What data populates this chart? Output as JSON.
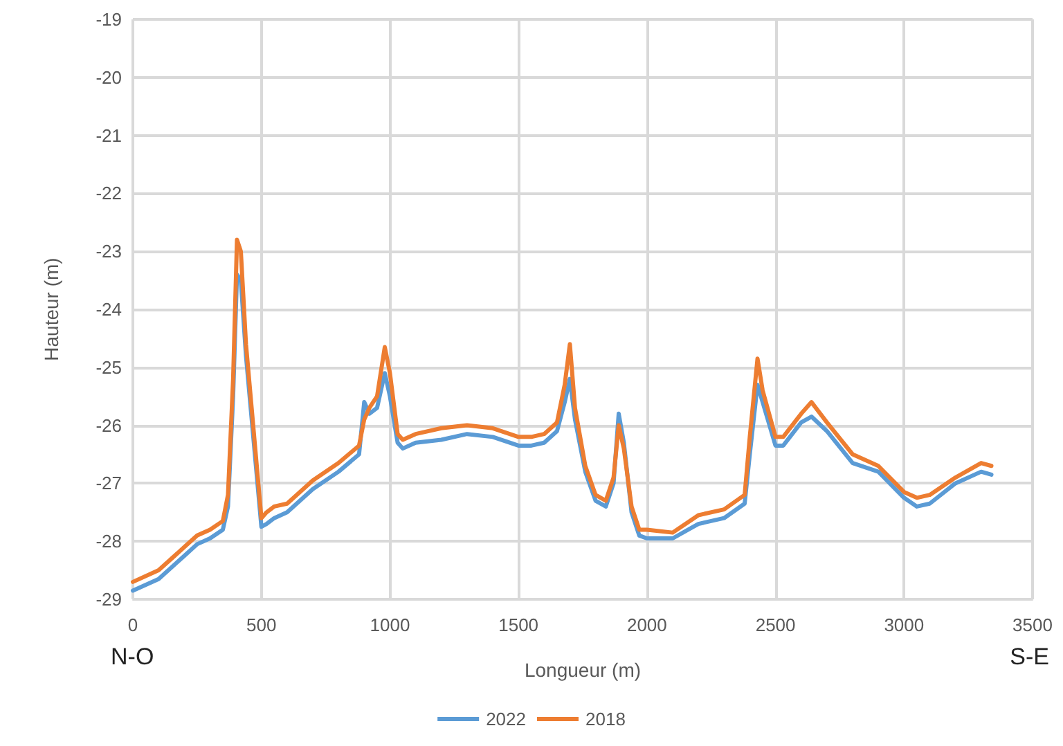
{
  "chart_data": {
    "type": "line",
    "xlabel": "Longueur (m)",
    "ylabel": "Hauteur (m)",
    "annotations": [
      "N-O",
      "S-E"
    ],
    "x": [
      0,
      100,
      200,
      250,
      300,
      350,
      370,
      390,
      405,
      420,
      440,
      500,
      520,
      550,
      600,
      650,
      700,
      800,
      880,
      900,
      920,
      950,
      980,
      1000,
      1030,
      1050,
      1100,
      1200,
      1300,
      1400,
      1500,
      1550,
      1600,
      1650,
      1680,
      1700,
      1720,
      1760,
      1800,
      1840,
      1870,
      1890,
      1910,
      1940,
      1970,
      2000,
      2100,
      2200,
      2300,
      2380,
      2400,
      2430,
      2450,
      2500,
      2530,
      2600,
      2640,
      2700,
      2800,
      2900,
      3000,
      3050,
      3100,
      3200,
      3300,
      3340
    ],
    "series": [
      {
        "name": "2022",
        "color": "#5b9bd5",
        "values": [
          -28.85,
          -28.65,
          -28.25,
          -28.05,
          -27.95,
          -27.8,
          -27.4,
          -25.5,
          -23.4,
          -23.5,
          -24.8,
          -27.75,
          -27.7,
          -27.6,
          -27.5,
          -27.3,
          -27.1,
          -26.8,
          -26.5,
          -25.6,
          -25.8,
          -25.7,
          -25.1,
          -25.5,
          -26.3,
          -26.4,
          -26.3,
          -26.25,
          -26.15,
          -26.2,
          -26.35,
          -26.35,
          -26.3,
          -26.1,
          -25.6,
          -25.2,
          -25.9,
          -26.8,
          -27.3,
          -27.4,
          -27.0,
          -25.8,
          -26.3,
          -27.5,
          -27.9,
          -27.95,
          -27.95,
          -27.7,
          -27.6,
          -27.35,
          -26.5,
          -25.3,
          -25.6,
          -26.35,
          -26.35,
          -25.95,
          -25.85,
          -26.1,
          -26.65,
          -26.8,
          -27.25,
          -27.4,
          -27.35,
          -27.0,
          -26.8,
          -26.85
        ]
      },
      {
        "name": "2018",
        "color": "#ed7d31",
        "values": [
          -28.7,
          -28.5,
          -28.1,
          -27.9,
          -27.8,
          -27.65,
          -27.2,
          -25.2,
          -22.8,
          -23.0,
          -24.6,
          -27.6,
          -27.5,
          -27.4,
          -27.35,
          -27.15,
          -26.95,
          -26.65,
          -26.35,
          -25.9,
          -25.7,
          -25.5,
          -24.65,
          -25.1,
          -26.15,
          -26.25,
          -26.15,
          -26.05,
          -26.0,
          -26.05,
          -26.2,
          -26.2,
          -26.15,
          -25.95,
          -25.3,
          -24.6,
          -25.7,
          -26.7,
          -27.2,
          -27.3,
          -26.9,
          -26.0,
          -26.4,
          -27.4,
          -27.8,
          -27.8,
          -27.85,
          -27.55,
          -27.45,
          -27.2,
          -26.2,
          -24.85,
          -25.4,
          -26.2,
          -26.2,
          -25.8,
          -25.6,
          -25.95,
          -26.5,
          -26.7,
          -27.15,
          -27.25,
          -27.2,
          -26.9,
          -26.65,
          -26.7
        ]
      }
    ],
    "xlim": [
      0,
      3500
    ],
    "xticks": [
      0,
      500,
      1000,
      1500,
      2000,
      2500,
      3000,
      3500
    ],
    "ylim": [
      -29,
      -19
    ],
    "yticks": [
      -29,
      -28,
      -27,
      -26,
      -25,
      -24,
      -23,
      -22,
      -21,
      -20,
      -19
    ],
    "grid": true,
    "legend": "bottom",
    "marker": "none",
    "line_style": "solid"
  }
}
